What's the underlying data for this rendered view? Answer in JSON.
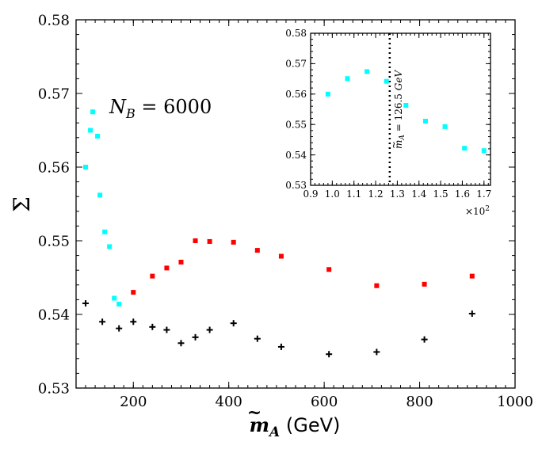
{
  "chart_data": [
    {
      "type": "scatter",
      "title": "",
      "annotation": "N_B = 6000",
      "annotation_parts": {
        "var": "N",
        "sub": "B",
        "rest": " = 6000"
      },
      "xlabel_parts": {
        "var": "m",
        "tilde": "~",
        "sub": "A",
        "unit": " (GeV)"
      },
      "ylabel_parts": {
        "symbol": "Σ",
        "bar": "¯"
      },
      "xlim": [
        80,
        1000
      ],
      "ylim": [
        0.53,
        0.58
      ],
      "x_ticks": [
        200,
        400,
        600,
        800,
        1000
      ],
      "x_tick_labels": [
        "200",
        "400",
        "600",
        "800",
        "1000"
      ],
      "y_ticks": [
        0.53,
        0.54,
        0.55,
        0.56,
        0.57,
        0.58
      ],
      "y_tick_labels": [
        "0.53",
        "0.54",
        "0.55",
        "0.56",
        "0.57",
        "0.58"
      ],
      "series": [
        {
          "name": "cyan",
          "color": "#00FFFF",
          "marker": "square",
          "x": [
            100,
            110,
            115,
            125,
            130,
            140,
            150,
            160,
            170
          ],
          "y": [
            0.56,
            0.565,
            0.5675,
            0.5642,
            0.5562,
            0.5512,
            0.5492,
            0.5422,
            0.5414
          ]
        },
        {
          "name": "red",
          "color": "#FF0000",
          "marker": "square",
          "x": [
            200,
            240,
            270,
            300,
            330,
            360,
            410,
            460,
            510,
            610,
            710,
            810,
            910
          ],
          "y": [
            0.543,
            0.5452,
            0.5463,
            0.5471,
            0.55,
            0.5499,
            0.5498,
            0.5487,
            0.5479,
            0.5461,
            0.5439,
            0.5441,
            0.5452
          ]
        },
        {
          "name": "black",
          "color": "#000000",
          "marker": "plus",
          "x": [
            100,
            135,
            170,
            200,
            240,
            270,
            300,
            330,
            360,
            410,
            460,
            510,
            610,
            710,
            810,
            910
          ],
          "y": [
            0.5415,
            0.539,
            0.5381,
            0.539,
            0.5383,
            0.5379,
            0.5361,
            0.5369,
            0.5379,
            0.5388,
            0.5367,
            0.5356,
            0.5346,
            0.5349,
            0.5366,
            0.5401
          ]
        }
      ]
    },
    {
      "type": "scatter",
      "title": "",
      "annotation": "m̃_A = 126.5 GeV",
      "annotation_parts": {
        "var": "m",
        "tilde": "~",
        "sub": "A",
        "rest": " = 126.5",
        "unit": "GeV"
      },
      "vline_x": 126.5,
      "xlim": [
        90,
        173
      ],
      "ylim": [
        0.53,
        0.58
      ],
      "x_ticks": [
        90,
        100,
        110,
        120,
        130,
        140,
        150,
        160,
        170
      ],
      "x_tick_labels": [
        "0.9",
        "1.0",
        "1.1",
        "1.2",
        "1.3",
        "1.4",
        "1.5",
        "1.6",
        "1.7"
      ],
      "x_offset_label": "×10",
      "x_offset_exp": "2",
      "y_ticks": [
        0.53,
        0.54,
        0.55,
        0.56,
        0.57,
        0.58
      ],
      "y_tick_labels": [
        "0.53",
        "0.54",
        "0.55",
        "0.56",
        "0.57",
        "0.58"
      ],
      "series": [
        {
          "name": "cyan-zoom",
          "color": "#00FFFF",
          "marker": "square",
          "x": [
            98,
            107,
            116,
            125,
            134,
            143,
            152,
            161,
            170
          ],
          "y": [
            0.56,
            0.5651,
            0.5674,
            0.5642,
            0.5563,
            0.5511,
            0.5493,
            0.5422,
            0.5414
          ]
        }
      ]
    }
  ]
}
